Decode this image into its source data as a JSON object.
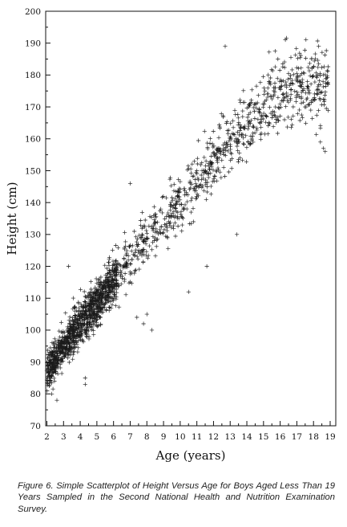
{
  "chart_data": {
    "type": "scatter",
    "title": "",
    "xlabel": "Age (years)",
    "ylabel": "Height (cm)",
    "xlim": [
      1.9,
      19.2
    ],
    "ylim": [
      70,
      200
    ],
    "xticks": [
      2,
      3,
      4,
      5,
      6,
      7,
      8,
      9,
      10,
      11,
      12,
      13,
      14,
      15,
      16,
      17,
      18,
      19
    ],
    "yticks": [
      70,
      80,
      90,
      100,
      110,
      120,
      130,
      140,
      150,
      160,
      170,
      180,
      190,
      200
    ],
    "grid": false,
    "legend": "none",
    "marker": "+",
    "marker_color": "#1a1a1a",
    "n_points": 2000,
    "trend_anchors": {
      "x": [
        2,
        3,
        4,
        5,
        6,
        7,
        8,
        9,
        10,
        11,
        12,
        13,
        14,
        15,
        16,
        17,
        18,
        19
      ],
      "y": [
        87,
        95,
        102,
        108,
        116,
        122,
        128,
        134,
        140,
        146,
        152,
        158,
        165,
        171,
        174,
        176,
        177,
        178
      ]
    },
    "outliers": {
      "x": [
        2.3,
        2.6,
        3.3,
        4.3,
        4.3,
        7.0,
        7.4,
        7.8,
        8.0,
        8.3,
        10.5,
        11.6,
        13.4,
        12.7,
        18.7,
        18.6
      ],
      "y": [
        80,
        78,
        120,
        83,
        85,
        146,
        104,
        102,
        105,
        100,
        112,
        120,
        130,
        189,
        156,
        157
      ]
    }
  },
  "caption": {
    "text": "Figure 6.  Simple Scatterplot of Height Versus Age for Boys Aged Less Than 19 Years Sampled in the Second National Health and Nutrition Examination Survey."
  }
}
